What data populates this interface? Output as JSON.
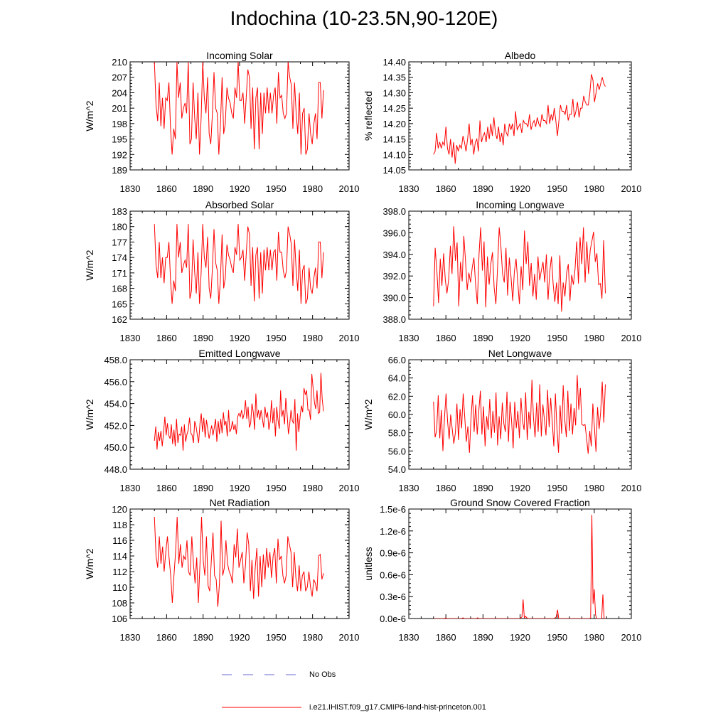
{
  "figure": {
    "title": "Indochina (10-23.5N,90-120E)",
    "line_color": "#ff0000",
    "noobs_color": "#6a6ad0",
    "legend": {
      "noobs_label": "No Obs",
      "model_label": "i.e21.IHIST.f09_g17.CMIP6-land-hist-princeton.001"
    }
  },
  "chart_data": [
    {
      "type": "line",
      "title": "Incoming Solar",
      "ylabel": "W/m^2",
      "xlim": [
        1830,
        2010
      ],
      "xticks": [
        "1830",
        "1860",
        "1890",
        "1920",
        "1950",
        "1980",
        "2010"
      ],
      "ylim": [
        189,
        210
      ],
      "yticks": [
        "189",
        "192",
        "195",
        "198",
        "201",
        "204",
        "207",
        "210"
      ],
      "x_start": 1850,
      "values": [
        210,
        201.5,
        198.5,
        206,
        197.5,
        203,
        197,
        203,
        202.5,
        206,
        197,
        192,
        197,
        195,
        210,
        203,
        206,
        199,
        201,
        202,
        200,
        210,
        194,
        195,
        206,
        199,
        195,
        204,
        192,
        199,
        210,
        203,
        200,
        207,
        196,
        194,
        200,
        208,
        201,
        200,
        192,
        198,
        207,
        196,
        198,
        205,
        203,
        202,
        200,
        199,
        205,
        203,
        210,
        202.5,
        202.5,
        204,
        198,
        203,
        208.5,
        207,
        197,
        205,
        193,
        203,
        205,
        193,
        204,
        196,
        204,
        200,
        205,
        200,
        204,
        200,
        203.5,
        205,
        198,
        208,
        203,
        203.5,
        200,
        199,
        200,
        210,
        207,
        205.5,
        197,
        206,
        200,
        196,
        204,
        192,
        200,
        201,
        192,
        193,
        200,
        196,
        194,
        198,
        200,
        195,
        206,
        206,
        199,
        204.5
      ],
      "series_name": ""
    },
    {
      "type": "line",
      "title": "Albedo",
      "ylabel": "% reflected",
      "xlim": [
        1830,
        2010
      ],
      "xticks": [
        "1830",
        "1860",
        "1890",
        "1920",
        "1950",
        "1980",
        "2010"
      ],
      "ylim": [
        14.05,
        14.4
      ],
      "yticks": [
        "14.05",
        "14.10",
        "14.15",
        "14.20",
        "14.25",
        "14.30",
        "14.35",
        "14.40"
      ],
      "x_start": 1850,
      "values": [
        14.1,
        14.11,
        14.17,
        14.12,
        14.14,
        14.12,
        14.14,
        14.13,
        14.19,
        14.12,
        14.1,
        14.15,
        14.09,
        14.14,
        14.07,
        14.13,
        14.11,
        14.13,
        14.12,
        14.16,
        14.14,
        14.11,
        14.15,
        14.2,
        14.13,
        14.15,
        14.1,
        14.14,
        14.15,
        14.11,
        14.21,
        14.14,
        14.16,
        14.17,
        14.14,
        14.19,
        14.15,
        14.2,
        14.16,
        14.22,
        14.17,
        14.15,
        14.19,
        14.14,
        14.17,
        14.13,
        14.2,
        14.17,
        14.16,
        14.2,
        14.18,
        14.2,
        14.16,
        14.24,
        14.18,
        14.19,
        14.2,
        14.17,
        14.21,
        14.2,
        14.2,
        14.19,
        14.23,
        14.18,
        14.2,
        14.21,
        14.19,
        14.22,
        14.2,
        14.19,
        14.23,
        14.21,
        14.21,
        14.2,
        14.26,
        14.2,
        14.23,
        14.21,
        14.25,
        14.21,
        14.16,
        14.21,
        14.26,
        14.24,
        14.24,
        14.23,
        14.26,
        14.21,
        14.23,
        14.23,
        14.28,
        14.22,
        14.24,
        14.27,
        14.22,
        14.25,
        14.25,
        14.29,
        14.27,
        14.26,
        14.26,
        14.3,
        14.36,
        14.34,
        14.27,
        14.3,
        14.33,
        14.31,
        14.33,
        14.35,
        14.33,
        14.32
      ],
      "series_name": ""
    },
    {
      "type": "line",
      "title": "Absorbed Solar",
      "ylabel": "W/m^2",
      "xlim": [
        1830,
        2010
      ],
      "xticks": [
        "1830",
        "1860",
        "1890",
        "1920",
        "1950",
        "1980",
        "2010"
      ],
      "ylim": [
        162,
        183
      ],
      "yticks": [
        "162",
        "165",
        "168",
        "171",
        "174",
        "177",
        "180",
        "183"
      ],
      "x_start": 1850,
      "values": [
        180.5,
        172.5,
        170,
        177,
        170,
        174,
        169,
        174,
        174,
        177,
        169.5,
        165,
        169.5,
        167.5,
        180.5,
        174,
        177,
        171,
        172.5,
        173.5,
        172,
        180.5,
        166,
        167.5,
        177.5,
        171,
        167,
        175,
        165,
        171,
        180.5,
        174,
        172,
        178,
        168,
        166,
        172,
        179.5,
        173,
        171.5,
        165,
        170,
        178.5,
        168,
        170,
        176.5,
        174.5,
        173.5,
        172,
        171,
        176,
        174.5,
        180.5,
        173.5,
        174,
        175.5,
        169.5,
        174.5,
        180,
        178.5,
        168.5,
        176,
        165.5,
        174.5,
        176,
        166,
        175,
        167,
        175.5,
        171.5,
        176,
        171.5,
        175.5,
        171.5,
        175,
        175.5,
        169.5,
        179,
        175,
        175,
        171.5,
        170,
        171.5,
        180,
        178.5,
        176.5,
        168.5,
        177.5,
        171.5,
        167.5,
        175.5,
        165,
        171.5,
        172.5,
        165,
        166,
        172,
        168,
        167,
        170,
        172,
        168,
        177,
        177,
        170,
        175
      ],
      "series_name": ""
    },
    {
      "type": "line",
      "title": "Incoming Longwave",
      "ylabel": "",
      "xlim": [
        1830,
        2010
      ],
      "xticks": [
        "1830",
        "1860",
        "1890",
        "1920",
        "1950",
        "1980",
        "2010"
      ],
      "ylim": [
        388,
        398
      ],
      "yticks": [
        "388.0",
        "390.0",
        "392.0",
        "394.0",
        "396.0",
        "398.0"
      ],
      "x_start": 1850,
      "values": [
        389.2,
        394.6,
        392.5,
        389.5,
        393.6,
        391.1,
        394.1,
        391.6,
        390.4,
        391.7,
        394.8,
        392.2,
        396.6,
        393.4,
        395.1,
        389.2,
        393.3,
        391.5,
        395.7,
        393.4,
        390.7,
        392.3,
        391.4,
        392.8,
        393.7,
        391.2,
        389.4,
        394.0,
        396.5,
        392.5,
        395.2,
        389.1,
        393.8,
        391.2,
        393.1,
        394.2,
        390.9,
        389.4,
        392.7,
        396.5,
        394.7,
        392.2,
        391.4,
        394.6,
        390.2,
        393.7,
        391.9,
        389.7,
        392.4,
        393.6,
        391.4,
        389.4,
        392.9,
        390.7,
        396.2,
        393.1,
        395.2,
        391.1,
        393.2,
        390.1,
        392.2,
        389.8,
        393.8,
        391.6,
        392.5,
        393.3,
        391.4,
        394.0,
        389.8,
        392.4,
        393.8,
        391.3,
        389.6,
        391.4,
        389.4,
        393.9,
        388.7,
        391.4,
        390.1,
        392.3,
        393.1,
        389.7,
        392.1,
        391.2,
        392.6,
        395.2,
        391.3,
        395.6,
        393.1,
        396.5,
        391.4,
        395.2,
        392.2,
        394.4,
        395.2,
        396.1,
        393.3,
        394.1,
        391.2,
        391.3,
        389.9,
        395.3,
        390.4
      ],
      "series_name": ""
    },
    {
      "type": "line",
      "title": "Emitted Longwave",
      "ylabel": "W/m^2",
      "xlim": [
        1830,
        2010
      ],
      "xticks": [
        "1830",
        "1860",
        "1890",
        "1920",
        "1950",
        "1980",
        "2010"
      ],
      "ylim": [
        448,
        458
      ],
      "yticks": [
        "448.0",
        "450.0",
        "452.0",
        "454.0",
        "456.0",
        "458.0"
      ],
      "x_start": 1850,
      "values": [
        450.6,
        451.9,
        449.8,
        451.4,
        450.6,
        451.5,
        450.1,
        451.3,
        452.8,
        451.1,
        452.2,
        451.1,
        450.8,
        452.1,
        450.3,
        451.6,
        450.1,
        452.6,
        450.4,
        451.2,
        451.1,
        451.9,
        449.7,
        452.1,
        450.5,
        451.2,
        451.6,
        452.7,
        451.3,
        451.1,
        450.4,
        452.4,
        451.9,
        451.1,
        450.4,
        452.2,
        453.1,
        451.4,
        452.7,
        450.9,
        452.5,
        451.7,
        450.8,
        451.4,
        452.0,
        451.1,
        451.8,
        452.6,
        450.5,
        452.4,
        451.2,
        452.6,
        451.3,
        453.2,
        452.0,
        452.4,
        451.0,
        453.4,
        451.4,
        451.7,
        452.4,
        451.6,
        452.1,
        451.2,
        452.8,
        453.1,
        452.8,
        453.4,
        452.6,
        453.1,
        454.3,
        452.6,
        453.7,
        451.8,
        452.2,
        454.0,
        453.2,
        451.6,
        454.9,
        452.7,
        453.4,
        452.5,
        453.4,
        452.6,
        451.8,
        453.7,
        452.7,
        453.2,
        451.6,
        452.4,
        454.3,
        452.2,
        453.6,
        451.0,
        453.7,
        452.5,
        451.7,
        455.2,
        452.8,
        453.4,
        452.1,
        454.5,
        453.1,
        451.2,
        452.1,
        453.4,
        452.4,
        452.2,
        454.4,
        449.7,
        453.1,
        451.4,
        452.8,
        453.8,
        453.2,
        455.4,
        454.8,
        455.2,
        453.4,
        453.4,
        452.5,
        456.7,
        455.4,
        454.1,
        453.5,
        455.2,
        453.1,
        453.2,
        456.8,
        454.4,
        453.3
      ],
      "series_name": ""
    },
    {
      "type": "line",
      "title": "Net Longwave",
      "ylabel": "W/m^2",
      "xlim": [
        1830,
        2010
      ],
      "xticks": [
        "1830",
        "1860",
        "1890",
        "1920",
        "1950",
        "1980",
        "2010"
      ],
      "ylim": [
        54,
        66
      ],
      "yticks": [
        "54.0",
        "56.0",
        "58.0",
        "60.0",
        "62.0",
        "64.0",
        "66.0"
      ],
      "x_start": 1850,
      "values": [
        61.4,
        57.5,
        58.2,
        62.1,
        57.4,
        60.5,
        56.0,
        59.6,
        62.3,
        59.2,
        57.3,
        60.0,
        58.4,
        56.8,
        58.0,
        61.2,
        57.2,
        60.6,
        58.5,
        62.3,
        59.7,
        57.0,
        58.7,
        55.8,
        59.6,
        62.1,
        58.1,
        61.1,
        57.8,
        60.4,
        62.6,
        57.8,
        60.9,
        56.5,
        59.8,
        58.3,
        61.7,
        57.4,
        60.4,
        58.0,
        62.4,
        56.6,
        59.8,
        57.3,
        61.3,
        59.0,
        58.1,
        62.5,
        57.0,
        61.4,
        59.3,
        56.3,
        61.4,
        58.5,
        60.4,
        57.4,
        61.8,
        59.3,
        58.3,
        62.4,
        57.2,
        60.3,
        58.4,
        63.8,
        59.6,
        57.5,
        61.3,
        58.1,
        63.3,
        57.6,
        61.1,
        59.4,
        57.7,
        62.7,
        58.6,
        61.8,
        59.2,
        56.5,
        62.3,
        58.5,
        55.8,
        61.0,
        57.9,
        63.2,
        59.4,
        57.5,
        62.6,
        58.2,
        61.2,
        57.8,
        60.7,
        58.8,
        64.3,
        60.5,
        62.9,
        58.9,
        58.8,
        58.9,
        57.4,
        55.7,
        58.2,
        56.5,
        61.2,
        58.6,
        55.9,
        60.8,
        58.4,
        60.3,
        63.6,
        59.1,
        63.3
      ],
      "series_name": ""
    },
    {
      "type": "line",
      "title": "Net Radiation",
      "ylabel": "W/m^2",
      "xlim": [
        1830,
        2010
      ],
      "xticks": [
        "1830",
        "1860",
        "1890",
        "1920",
        "1950",
        "1980",
        "2010"
      ],
      "ylim": [
        106,
        120
      ],
      "yticks": [
        "106",
        "108",
        "110",
        "112",
        "114",
        "116",
        "118",
        "120"
      ],
      "x_start": 1850,
      "values": [
        119.0,
        114.0,
        112.5,
        116.5,
        113.0,
        115.2,
        112.0,
        114.5,
        116.5,
        113.8,
        111.5,
        108.0,
        111.5,
        114.5,
        119.0,
        113.0,
        115.5,
        112.5,
        114.0,
        113.5,
        116.0,
        112.0,
        111.5,
        116.5,
        113.0,
        110.5,
        113.8,
        108.0,
        113.0,
        119.0,
        113.5,
        111.5,
        116.5,
        110.2,
        109.5,
        113.5,
        117.0,
        111.5,
        111.0,
        107.5,
        110.5,
        118.5,
        111.5,
        112.5,
        116.0,
        113.0,
        112.0,
        111.5,
        110.5,
        115.5,
        113.8,
        117.5,
        112.5,
        113.5,
        114.5,
        110.5,
        112.8,
        117.0,
        115.5,
        109.5,
        113.5,
        108.5,
        112.5,
        115.0,
        108.8,
        114.0,
        110.0,
        114.2,
        111.0,
        115.0,
        112.5,
        114.5,
        111.2,
        114.0,
        115.0,
        110.5,
        116.2,
        113.5,
        114.0,
        111.5,
        110.5,
        111.5,
        116.5,
        115.5,
        114.5,
        110.0,
        114.5,
        111.2,
        109.5,
        112.8,
        109.5,
        111.5,
        112.0,
        109.5,
        110.0,
        112.0,
        110.0,
        108.8,
        111.0,
        110.5,
        109.5,
        114.0,
        114.2,
        111.0,
        111.8
      ],
      "series_name": ""
    },
    {
      "type": "line",
      "title": "Ground Snow Covered Fraction",
      "ylabel": "unitless",
      "xlim": [
        1830,
        2010
      ],
      "xticks": [
        "1830",
        "1860",
        "1890",
        "1920",
        "1950",
        "1980",
        "2010"
      ],
      "ylim": [
        0,
        1.5
      ],
      "yticks": [
        "0.0e-6",
        "0.3e-6",
        "0.6e-6",
        "0.9e-6",
        "1.2e-6",
        "1.5e-6"
      ],
      "x_start": 1850,
      "values": [
        0,
        0,
        0,
        0,
        0,
        0,
        0,
        0,
        0,
        0,
        0.01,
        0,
        0,
        0,
        0,
        0,
        0,
        0,
        0,
        0,
        0,
        0,
        0,
        0,
        0.01,
        0,
        0,
        0,
        0,
        0,
        0,
        0,
        0,
        0,
        0,
        0,
        0.01,
        0,
        0,
        0,
        0,
        0,
        0,
        0,
        0,
        0,
        0,
        0,
        0,
        0,
        0,
        0,
        0,
        0,
        0,
        0,
        0,
        0,
        0,
        0,
        0,
        0,
        0,
        0,
        0,
        0,
        0,
        0,
        0,
        0,
        0,
        0.01,
        0.02,
        0.26,
        0.01,
        0.03,
        0.01,
        0,
        0,
        0,
        0,
        0,
        0,
        0,
        0,
        0,
        0,
        0,
        0,
        0,
        0,
        0,
        0,
        0,
        0,
        0,
        0,
        0,
        0,
        0.01,
        0.02,
        0.12,
        0,
        0,
        0,
        0,
        0,
        0,
        0,
        0,
        0,
        0,
        0,
        0,
        0,
        0,
        0,
        0,
        0,
        0,
        0,
        0,
        0,
        0,
        0,
        0,
        0,
        0,
        0.01,
        1.42,
        0.2,
        0.4,
        0.05,
        0,
        0,
        0,
        0,
        0,
        0.33,
        0,
        0
      ],
      "series_name": ""
    }
  ]
}
